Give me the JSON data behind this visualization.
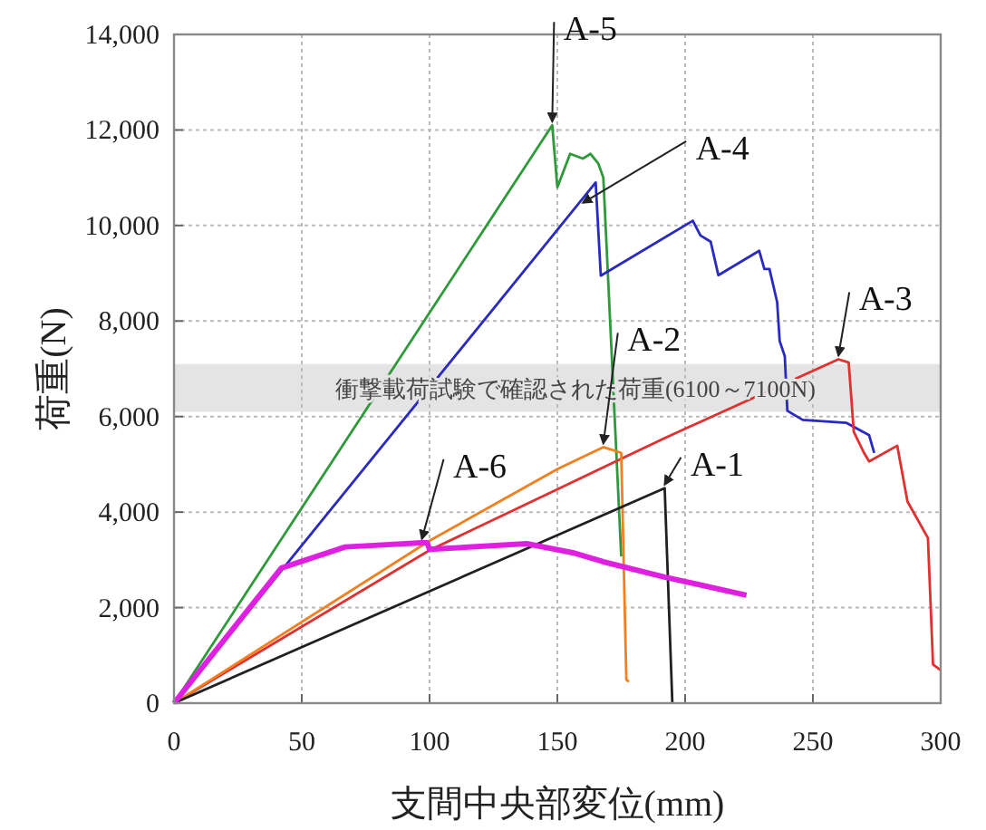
{
  "chart_data": {
    "type": "line",
    "xlabel": "支間中央部変位(mm)",
    "ylabel": "荷重(N)",
    "xlim": [
      0,
      300
    ],
    "xticks": [
      0,
      50,
      100,
      150,
      200,
      250,
      300
    ],
    "ylim": [
      0,
      14000
    ],
    "yticks": [
      {
        "value": 0,
        "label": "0"
      },
      {
        "value": 2000,
        "label": "2,000"
      },
      {
        "value": 4000,
        "label": "4,000"
      },
      {
        "value": 6000,
        "label": "6,000"
      },
      {
        "value": 8000,
        "label": "8,000"
      },
      {
        "value": 10000,
        "label": "10,000"
      },
      {
        "value": 12000,
        "label": "12,000"
      },
      {
        "value": 14000,
        "label": "14,000"
      }
    ],
    "grid": true,
    "line_style": "solid",
    "bands": [
      {
        "axis": "y",
        "from": 6100,
        "to": 7100,
        "label": "衝撃載荷試験で確認された荷重(6100～7100N)",
        "color": "#e4e4e4"
      }
    ],
    "series": [
      {
        "color": "#2e9a3a",
        "x": [
          0,
          148,
          150,
          155,
          160,
          163,
          166,
          168,
          175
        ],
        "values": [
          0,
          12100,
          10800,
          11500,
          11400,
          11500,
          11300,
          11000,
          3070
        ]
      },
      {
        "color": "#2a2ac0",
        "x": [
          0,
          165,
          167,
          203,
          206,
          210,
          213,
          229,
          231,
          233,
          236,
          237,
          239,
          240,
          246,
          263,
          272,
          274
        ],
        "values": [
          0,
          10900,
          8950,
          10100,
          9790,
          9660,
          8960,
          9470,
          9090,
          9090,
          8400,
          7580,
          7260,
          6120,
          5930,
          5870,
          5610,
          5240
        ]
      },
      {
        "color": "#e03030",
        "x": [
          0,
          100,
          145,
          192,
          260,
          264,
          266,
          270,
          272,
          283,
          287,
          295,
          297,
          300
        ],
        "values": [
          0,
          3200,
          4350,
          5550,
          7200,
          7130,
          5680,
          5240,
          5060,
          5390,
          4220,
          3460,
          810,
          690
        ]
      },
      {
        "color": "#f08020",
        "x": [
          0,
          100,
          150,
          168,
          175,
          177,
          178
        ],
        "values": [
          0,
          3400,
          4900,
          5360,
          5240,
          490,
          450
        ]
      },
      {
        "color": "#202020",
        "x": [
          0,
          192,
          195
        ],
        "values": [
          0,
          4500,
          0
        ]
      },
      {
        "color": "#e020e0",
        "x": [
          0,
          42,
          67,
          97,
          99,
          100,
          138,
          156,
          168,
          192,
          224
        ],
        "values": [
          0,
          2830,
          3270,
          3360,
          3360,
          3220,
          3340,
          3150,
          2960,
          2640,
          2260
        ]
      }
    ],
    "annotations": [
      {
        "text": "A-5",
        "x": 148,
        "y": 12100
      },
      {
        "text": "A-4",
        "x": 160,
        "y": 10400
      },
      {
        "text": "A-3",
        "x": 260,
        "y": 7200
      },
      {
        "text": "A-2",
        "x": 168,
        "y": 5360
      },
      {
        "text": "A-1",
        "x": 192,
        "y": 4500
      },
      {
        "text": "A-6",
        "x": 97,
        "y": 3360
      }
    ]
  }
}
